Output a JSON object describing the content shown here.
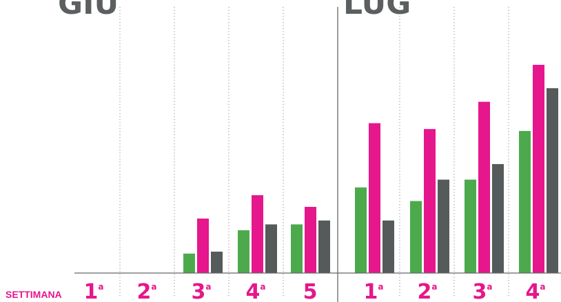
{
  "colors": {
    "series_green": "#4caa4c",
    "series_magenta": "#e6168c",
    "series_gray": "#555a5a",
    "month_text": "#5b5f60",
    "week_text": "#e6168c",
    "axis_title_text": "#e6168c",
    "axis_line": "#666666",
    "divider": "#9a9a9a"
  },
  "chart_data": {
    "type": "bar",
    "months": [
      {
        "label": "GIU",
        "first_week_index": 0
      },
      {
        "label": "LUG",
        "first_week_index": 5
      }
    ],
    "axis_title": "SETTIMANA",
    "categories": [
      {
        "number": "1",
        "suffix": "a"
      },
      {
        "number": "2",
        "suffix": "a"
      },
      {
        "number": "3",
        "suffix": "a"
      },
      {
        "number": "4",
        "suffix": "a"
      },
      {
        "number": "5",
        "suffix": ""
      },
      {
        "number": "1",
        "suffix": "a"
      },
      {
        "number": "2",
        "suffix": "a"
      },
      {
        "number": "3",
        "suffix": "a"
      },
      {
        "number": "4",
        "suffix": "a"
      }
    ],
    "series": [
      {
        "color_key": "series_green",
        "values": [
          0,
          0,
          10,
          22,
          25,
          44,
          37,
          48,
          73
        ]
      },
      {
        "color_key": "series_magenta",
        "values": [
          0,
          0,
          28,
          40,
          34,
          77,
          74,
          88,
          107
        ]
      },
      {
        "color_key": "series_gray",
        "values": [
          0,
          0,
          11,
          25,
          27,
          27,
          48,
          56,
          95
        ]
      }
    ],
    "ylim": [
      0,
      115
    ],
    "grid": false
  }
}
